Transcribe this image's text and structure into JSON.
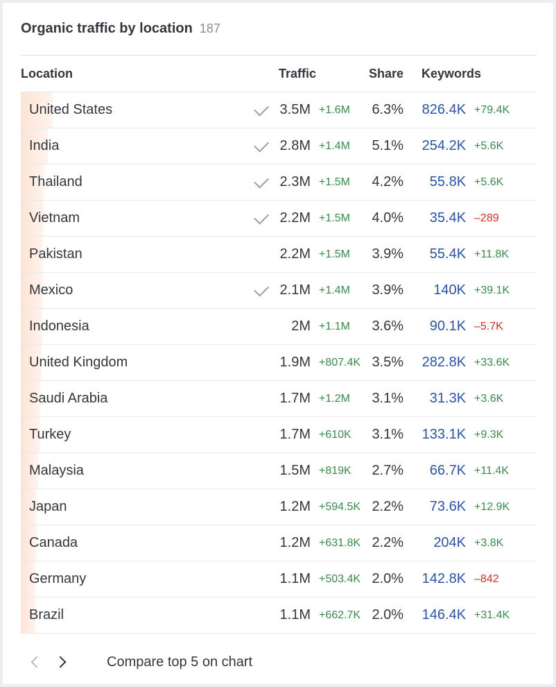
{
  "header": {
    "title": "Organic traffic by location",
    "count": "187"
  },
  "columns": {
    "location": "Location",
    "traffic": "Traffic",
    "share": "Share",
    "keywords": "Keywords"
  },
  "rows": [
    {
      "location": "United States",
      "checked": true,
      "traffic": "3.5M",
      "traffic_delta": "+1.6M",
      "share": "6.3%",
      "share_value": 6.3,
      "keywords": "826.4K",
      "keywords_delta": "+79.4K",
      "keywords_delta_sign": "pos"
    },
    {
      "location": "India",
      "checked": true,
      "traffic": "2.8M",
      "traffic_delta": "+1.4M",
      "share": "5.1%",
      "share_value": 5.1,
      "keywords": "254.2K",
      "keywords_delta": "+5.6K",
      "keywords_delta_sign": "pos"
    },
    {
      "location": "Thailand",
      "checked": true,
      "traffic": "2.3M",
      "traffic_delta": "+1.5M",
      "share": "4.2%",
      "share_value": 4.2,
      "keywords": "55.8K",
      "keywords_delta": "+5.6K",
      "keywords_delta_sign": "pos"
    },
    {
      "location": "Vietnam",
      "checked": true,
      "traffic": "2.2M",
      "traffic_delta": "+1.5M",
      "share": "4.0%",
      "share_value": 4.0,
      "keywords": "35.4K",
      "keywords_delta": "–289",
      "keywords_delta_sign": "neg"
    },
    {
      "location": "Pakistan",
      "checked": false,
      "traffic": "2.2M",
      "traffic_delta": "+1.5M",
      "share": "3.9%",
      "share_value": 3.9,
      "keywords": "55.4K",
      "keywords_delta": "+11.8K",
      "keywords_delta_sign": "pos"
    },
    {
      "location": "Mexico",
      "checked": true,
      "traffic": "2.1M",
      "traffic_delta": "+1.4M",
      "share": "3.9%",
      "share_value": 3.9,
      "keywords": "140K",
      "keywords_delta": "+39.1K",
      "keywords_delta_sign": "pos"
    },
    {
      "location": "Indonesia",
      "checked": false,
      "traffic": "2M",
      "traffic_delta": "+1.1M",
      "share": "3.6%",
      "share_value": 3.6,
      "keywords": "90.1K",
      "keywords_delta": "–5.7K",
      "keywords_delta_sign": "neg"
    },
    {
      "location": "United Kingdom",
      "checked": false,
      "traffic": "1.9M",
      "traffic_delta": "+807.4K",
      "share": "3.5%",
      "share_value": 3.5,
      "keywords": "282.8K",
      "keywords_delta": "+33.6K",
      "keywords_delta_sign": "pos"
    },
    {
      "location": "Saudi Arabia",
      "checked": false,
      "traffic": "1.7M",
      "traffic_delta": "+1.2M",
      "share": "3.1%",
      "share_value": 3.1,
      "keywords": "31.3K",
      "keywords_delta": "+3.6K",
      "keywords_delta_sign": "pos"
    },
    {
      "location": "Turkey",
      "checked": false,
      "traffic": "1.7M",
      "traffic_delta": "+610K",
      "share": "3.1%",
      "share_value": 3.1,
      "keywords": "133.1K",
      "keywords_delta": "+9.3K",
      "keywords_delta_sign": "pos"
    },
    {
      "location": "Malaysia",
      "checked": false,
      "traffic": "1.5M",
      "traffic_delta": "+819K",
      "share": "2.7%",
      "share_value": 2.7,
      "keywords": "66.7K",
      "keywords_delta": "+11.4K",
      "keywords_delta_sign": "pos"
    },
    {
      "location": "Japan",
      "checked": false,
      "traffic": "1.2M",
      "traffic_delta": "+594.5K",
      "share": "2.2%",
      "share_value": 2.2,
      "keywords": "73.6K",
      "keywords_delta": "+12.9K",
      "keywords_delta_sign": "pos"
    },
    {
      "location": "Canada",
      "checked": false,
      "traffic": "1.2M",
      "traffic_delta": "+631.8K",
      "share": "2.2%",
      "share_value": 2.2,
      "keywords": "204K",
      "keywords_delta": "+3.8K",
      "keywords_delta_sign": "pos"
    },
    {
      "location": "Germany",
      "checked": false,
      "traffic": "1.1M",
      "traffic_delta": "+503.4K",
      "share": "2.0%",
      "share_value": 2.0,
      "keywords": "142.8K",
      "keywords_delta": "–842",
      "keywords_delta_sign": "neg"
    },
    {
      "location": "Brazil",
      "checked": false,
      "traffic": "1.1M",
      "traffic_delta": "+662.7K",
      "share": "2.0%",
      "share_value": 2.0,
      "keywords": "146.4K",
      "keywords_delta": "+31.4K",
      "keywords_delta_sign": "pos"
    }
  ],
  "footer": {
    "prev_icon": "chevron-left-icon",
    "next_icon": "chevron-right-icon",
    "compare_label": "Compare top 5 on chart"
  },
  "colors": {
    "bar": "#fde3d5",
    "positive": "#3a8a4a",
    "negative": "#c8321f",
    "keywords": "#2a54a3"
  }
}
